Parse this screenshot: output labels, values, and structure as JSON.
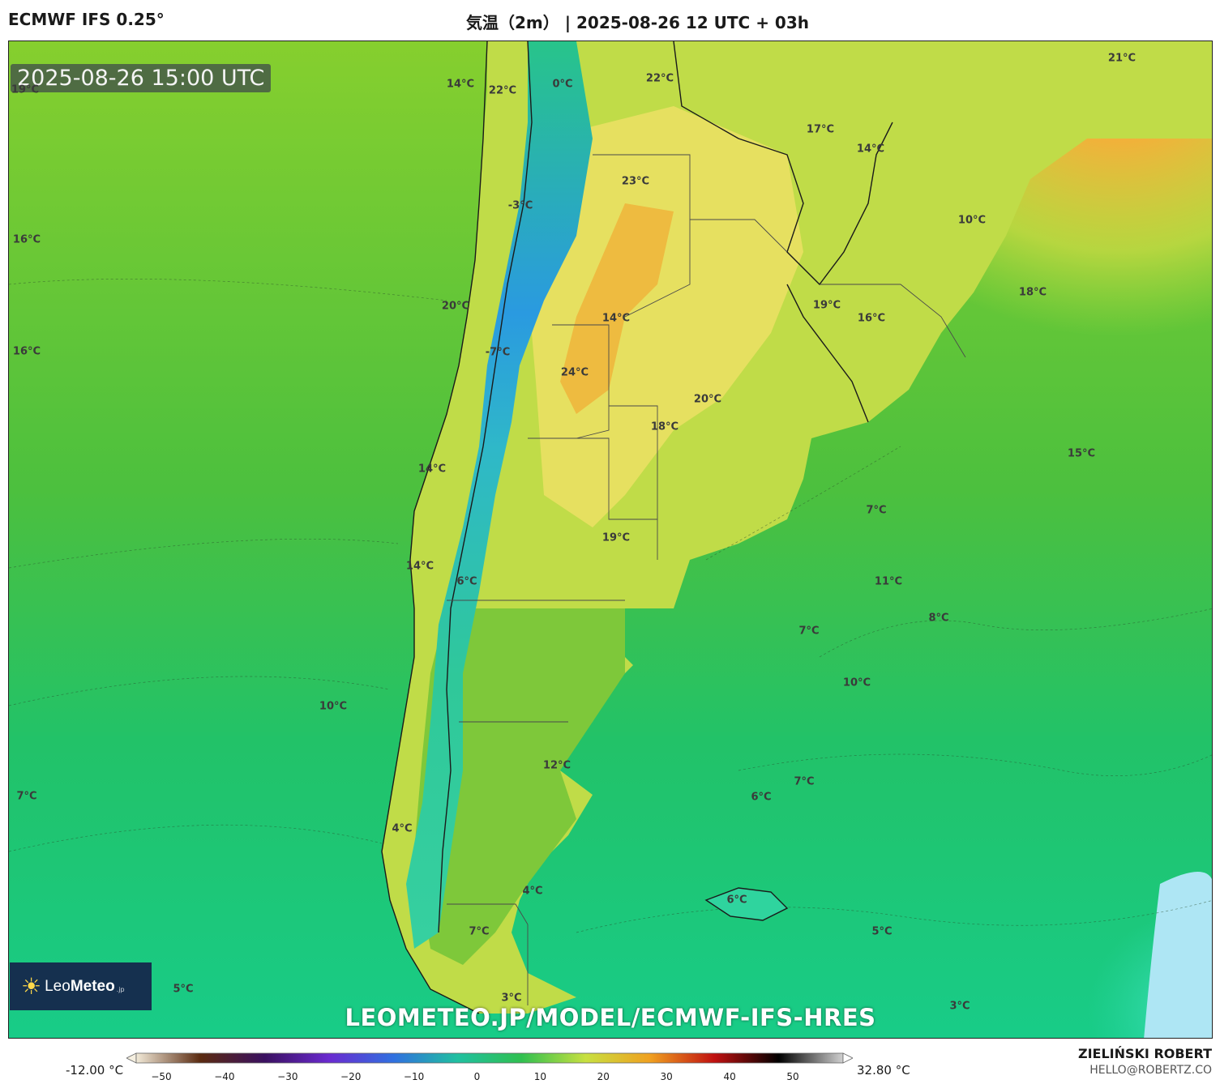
{
  "header": {
    "model": "ECMWF IFS 0.25°",
    "title": "気温（2m） | 2025-08-26 12 UTC + 03h"
  },
  "map": {
    "valid_time": "2025-08-26 15:00 UTC",
    "watermark": "LEOMETEO.JP/MODEL/ECMWF-IFS-HRES",
    "labels": [
      {
        "text": "19°C"
      },
      {
        "text": "14°C"
      },
      {
        "text": "22°C"
      },
      {
        "text": "0°C"
      },
      {
        "text": "22°C"
      },
      {
        "text": "21°C"
      },
      {
        "text": "17°C"
      },
      {
        "text": "14°C"
      },
      {
        "text": "23°C"
      },
      {
        "text": "-3°C"
      },
      {
        "text": "10°C"
      },
      {
        "text": "16°C"
      },
      {
        "text": "18°C"
      },
      {
        "text": "20°C"
      },
      {
        "text": "19°C"
      },
      {
        "text": "14°C"
      },
      {
        "text": "16°C"
      },
      {
        "text": "16°C"
      },
      {
        "text": "-7°C"
      },
      {
        "text": "24°C"
      },
      {
        "text": "20°C"
      },
      {
        "text": "18°C"
      },
      {
        "text": "15°C"
      },
      {
        "text": "14°C"
      },
      {
        "text": "7°C"
      },
      {
        "text": "19°C"
      },
      {
        "text": "14°C"
      },
      {
        "text": "6°C"
      },
      {
        "text": "11°C"
      },
      {
        "text": "8°C"
      },
      {
        "text": "7°C"
      },
      {
        "text": "10°C"
      },
      {
        "text": "10°C"
      },
      {
        "text": "12°C"
      },
      {
        "text": "7°C"
      },
      {
        "text": "7°C"
      },
      {
        "text": "6°C"
      },
      {
        "text": "4°C"
      },
      {
        "text": "4°C"
      },
      {
        "text": "6°C"
      },
      {
        "text": "5°C"
      },
      {
        "text": "7°C"
      },
      {
        "text": "5°C"
      },
      {
        "text": "3°C"
      },
      {
        "text": "3°C"
      }
    ]
  },
  "logo": {
    "brand_light": "Leo",
    "brand_bold": "Meteo",
    "suffix": ".jp"
  },
  "legend": {
    "min_label": "-12.00 °C",
    "max_label": "32.80 °C",
    "ticks": [
      "−50",
      "−40",
      "−30",
      "−20",
      "−10",
      "0",
      "10",
      "20",
      "30",
      "40",
      "50"
    ],
    "colors": [
      "#f2ead8",
      "#5a2a10",
      "#3a1060",
      "#6a2ad0",
      "#3070e0",
      "#20c0a0",
      "#30c050",
      "#c8e040",
      "#f0a020",
      "#c01010",
      "#000000",
      "#d0d0d0"
    ]
  },
  "footer": {
    "author": "ZIELIŃSKI ROBERT",
    "email": "HELLO@ROBERTZ.CO"
  }
}
